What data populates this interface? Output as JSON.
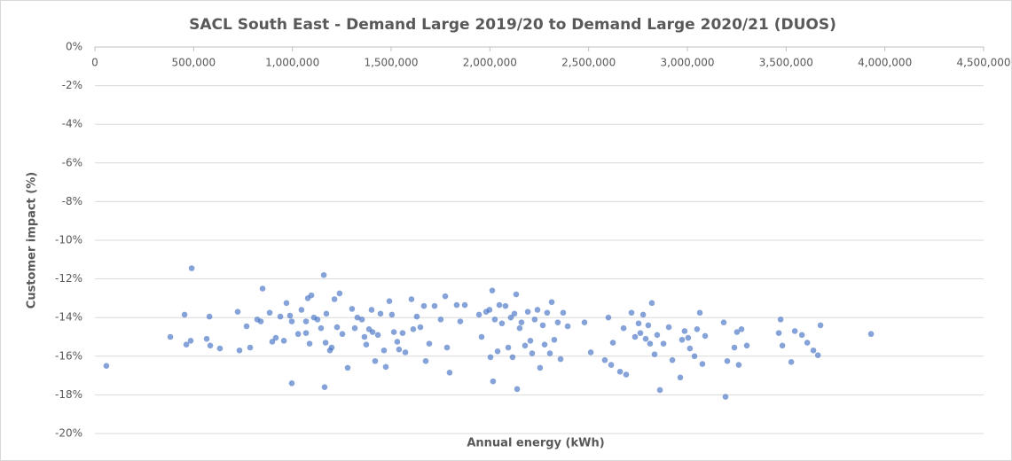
{
  "chart_data": {
    "type": "scatter",
    "title": "SACL South East - Demand Large 2019/20 to Demand Large 2020/21 (DUOS)",
    "xlabel": "Annual energy (kWh)",
    "ylabel": "Customer impact (%)",
    "color": "#4472c4",
    "grid": true,
    "xlim": [
      0,
      4500000
    ],
    "xticks": [
      0,
      {
        "value": 500000,
        "label": "500,000"
      },
      {
        "value": 1000000,
        "label": "1,000,000"
      },
      {
        "value": 1500000,
        "label": "1,500,000"
      },
      {
        "value": 2000000,
        "label": "2,000,000"
      },
      {
        "value": 2500000,
        "label": "2,500,000"
      },
      {
        "value": 3000000,
        "label": "3,000,000"
      },
      {
        "value": 3500000,
        "label": "3,500,000"
      },
      {
        "value": 4000000,
        "label": "4,000,000"
      },
      {
        "value": 4500000,
        "label": "4,500,000"
      }
    ],
    "ylim": [
      -20,
      0
    ],
    "yticks": [
      {
        "value": 0,
        "label": "0%"
      },
      {
        "value": -2,
        "label": "-2%"
      },
      {
        "value": -4,
        "label": "-4%"
      },
      {
        "value": -6,
        "label": "-6%"
      },
      {
        "value": -8,
        "label": "-8%"
      },
      {
        "value": -10,
        "label": "-10%"
      },
      {
        "value": -12,
        "label": "-12%"
      },
      {
        "value": -14,
        "label": "-14%"
      },
      {
        "value": -16,
        "label": "-16%"
      },
      {
        "value": -18,
        "label": "-18%"
      },
      {
        "value": -20,
        "label": "-20%"
      }
    ],
    "x": [
      58000,
      382000,
      454000,
      463000,
      485000,
      490000,
      566000,
      580000,
      584000,
      633000,
      723000,
      732000,
      768000,
      786000,
      822000,
      840000,
      849000,
      885000,
      898000,
      916000,
      939000,
      957000,
      970000,
      988000,
      997000,
      997000,
      1029000,
      1046000,
      1069000,
      1069000,
      1078000,
      1087000,
      1096000,
      1109000,
      1127000,
      1145000,
      1159000,
      1163000,
      1168000,
      1172000,
      1190000,
      1199000,
      1213000,
      1226000,
      1239000,
      1253000,
      1280000,
      1302000,
      1316000,
      1329000,
      1352000,
      1365000,
      1374000,
      1388000,
      1401000,
      1406000,
      1419000,
      1433000,
      1446000,
      1464000,
      1473000,
      1491000,
      1504000,
      1514000,
      1531000,
      1540000,
      1558000,
      1572000,
      1603000,
      1612000,
      1630000,
      1648000,
      1666000,
      1675000,
      1693000,
      1720000,
      1751000,
      1774000,
      1783000,
      1796000,
      1832000,
      1850000,
      1873000,
      1945000,
      1958000,
      1981000,
      1998000,
      2003000,
      2012000,
      2016000,
      2025000,
      2039000,
      2048000,
      2061000,
      2079000,
      2093000,
      2106000,
      2115000,
      2124000,
      2133000,
      2138000,
      2151000,
      2160000,
      2178000,
      2192000,
      2205000,
      2214000,
      2227000,
      2241000,
      2254000,
      2268000,
      2277000,
      2290000,
      2304000,
      2313000,
      2326000,
      2344000,
      2358000,
      2371000,
      2394000,
      2479000,
      2511000,
      2582000,
      2600000,
      2614000,
      2623000,
      2659000,
      2677000,
      2690000,
      2717000,
      2735000,
      2753000,
      2762000,
      2776000,
      2789000,
      2802000,
      2811000,
      2820000,
      2834000,
      2847000,
      2861000,
      2879000,
      2906000,
      2924000,
      2964000,
      2973000,
      2986000,
      3004000,
      3013000,
      3036000,
      3049000,
      3063000,
      3076000,
      3090000,
      3184000,
      3193000,
      3202000,
      3238000,
      3251000,
      3260000,
      3274000,
      3301000,
      3463000,
      3472000,
      3481000,
      3526000,
      3544000,
      3580000,
      3607000,
      3638000,
      3661000,
      3674000,
      3930000
    ],
    "values": [
      -16.5,
      -15.0,
      -13.85,
      -15.4,
      -15.2,
      -11.45,
      -15.1,
      -13.95,
      -15.45,
      -15.6,
      -13.7,
      -15.7,
      -14.45,
      -15.55,
      -14.1,
      -14.2,
      -12.5,
      -13.75,
      -15.25,
      -15.05,
      -13.95,
      -15.2,
      -13.25,
      -13.9,
      -17.4,
      -14.2,
      -14.85,
      -13.6,
      -14.2,
      -14.8,
      -13.0,
      -15.35,
      -12.85,
      -14.0,
      -14.1,
      -14.55,
      -11.8,
      -17.6,
      -15.3,
      -13.8,
      -15.7,
      -15.55,
      -13.05,
      -14.5,
      -12.75,
      -14.85,
      -16.6,
      -13.55,
      -14.55,
      -14.0,
      -14.1,
      -15.0,
      -15.4,
      -14.6,
      -13.6,
      -14.75,
      -16.25,
      -14.9,
      -13.8,
      -15.7,
      -16.55,
      -13.15,
      -13.85,
      -14.75,
      -15.25,
      -15.65,
      -14.8,
      -15.8,
      -13.05,
      -14.6,
      -13.95,
      -14.5,
      -13.4,
      -16.25,
      -15.35,
      -13.4,
      -14.1,
      -12.9,
      -15.55,
      -16.85,
      -13.35,
      -14.2,
      -13.35,
      -13.85,
      -15.0,
      -13.7,
      -13.6,
      -16.05,
      -12.6,
      -17.3,
      -14.1,
      -15.75,
      -13.35,
      -14.3,
      -13.4,
      -15.55,
      -14.0,
      -16.05,
      -13.8,
      -12.8,
      -17.7,
      -14.55,
      -14.25,
      -15.45,
      -13.7,
      -15.2,
      -15.85,
      -14.1,
      -13.6,
      -16.6,
      -14.4,
      -15.4,
      -13.75,
      -15.85,
      -13.2,
      -15.15,
      -14.25,
      -16.15,
      -13.75,
      -14.45,
      -14.25,
      -15.8,
      -16.2,
      -14.0,
      -16.45,
      -15.3,
      -16.8,
      -14.55,
      -16.95,
      -13.75,
      -15.0,
      -14.3,
      -14.8,
      -13.85,
      -15.1,
      -14.4,
      -15.35,
      -13.25,
      -15.9,
      -14.9,
      -17.75,
      -15.35,
      -14.5,
      -16.2,
      -17.1,
      -15.15,
      -14.7,
      -15.05,
      -15.6,
      -16.0,
      -14.6,
      -13.75,
      -16.4,
      -14.95,
      -14.25,
      -18.1,
      -16.25,
      -15.55,
      -14.75,
      -16.45,
      -14.6,
      -15.45,
      -14.8,
      -14.1,
      -15.45,
      -16.3,
      -14.7,
      -14.9,
      -15.3,
      -15.7,
      -15.95,
      -14.4,
      -14.85
    ]
  }
}
